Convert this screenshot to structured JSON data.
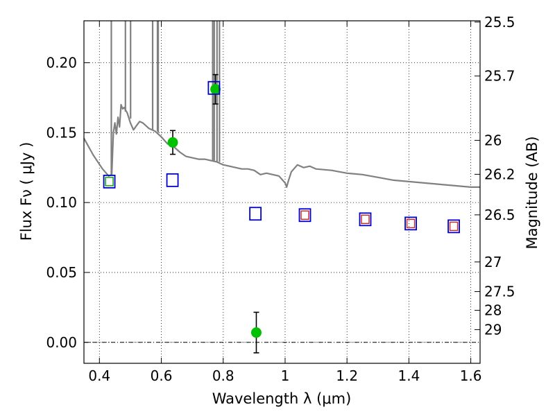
{
  "chart_data": {
    "type": "scatter",
    "xlabel": "Wavelength  λ (μm)",
    "ylabel": "Flux  Fν  ( μJy )",
    "y2label": "Magnitude (AB)",
    "xlim": [
      0.35,
      1.63
    ],
    "ylim": [
      -0.015,
      0.23
    ],
    "grid": true,
    "x_ticks": [
      0.4,
      0.6,
      0.8,
      1.0,
      1.2,
      1.4,
      1.6
    ],
    "x_tick_labels": [
      "0.4",
      "0.6",
      "0.8",
      "1",
      "1.2",
      "1.4",
      "1.6"
    ],
    "y_ticks": [
      0.0,
      0.05,
      0.1,
      0.15,
      0.2
    ],
    "y_tick_labels": [
      "0.00",
      "0.05",
      "0.10",
      "0.15",
      "0.20"
    ],
    "right_ticks": [
      {
        "label": "25.5",
        "flux": 0.2291
      },
      {
        "label": "25.7",
        "flux": 0.1905
      },
      {
        "label": "26",
        "flux": 0.1445
      },
      {
        "label": "26.2",
        "flux": 0.1202
      },
      {
        "label": "26.5",
        "flux": 0.0912
      },
      {
        "label": "27",
        "flux": 0.0575
      },
      {
        "label": "27.5",
        "flux": 0.0363
      },
      {
        "label": "28",
        "flux": 0.0229
      },
      {
        "label": "29",
        "flux": 0.0091
      }
    ],
    "series": [
      {
        "kind": "line",
        "color": "#808080",
        "x": [
          0.35,
          0.38,
          0.41,
          0.43,
          0.44,
          0.445,
          0.45,
          0.455,
          0.46,
          0.465,
          0.47,
          0.475,
          0.48,
          0.49,
          0.5,
          0.51,
          0.52,
          0.53,
          0.54,
          0.55,
          0.56,
          0.58,
          0.6,
          0.62,
          0.64,
          0.66,
          0.68,
          0.7,
          0.72,
          0.74,
          0.76,
          0.78,
          0.8,
          0.82,
          0.84,
          0.86,
          0.88,
          0.9,
          0.92,
          0.94,
          0.96,
          0.98,
          1.0,
          1.005,
          1.01,
          1.02,
          1.04,
          1.06,
          1.08,
          1.1,
          1.15,
          1.2,
          1.25,
          1.3,
          1.35,
          1.4,
          1.45,
          1.5,
          1.55,
          1.6,
          1.63
        ],
        "y": [
          0.146,
          0.134,
          0.124,
          0.119,
          0.12,
          0.15,
          0.157,
          0.149,
          0.161,
          0.154,
          0.17,
          0.167,
          0.168,
          0.164,
          0.157,
          0.152,
          0.155,
          0.158,
          0.157,
          0.155,
          0.153,
          0.151,
          0.147,
          0.142,
          0.14,
          0.136,
          0.133,
          0.132,
          0.131,
          0.131,
          0.13,
          0.129,
          0.127,
          0.126,
          0.125,
          0.124,
          0.124,
          0.123,
          0.12,
          0.121,
          0.12,
          0.119,
          0.114,
          0.111,
          0.115,
          0.122,
          0.127,
          0.125,
          0.126,
          0.124,
          0.123,
          0.121,
          0.12,
          0.118,
          0.116,
          0.115,
          0.114,
          0.113,
          0.112,
          0.111,
          0.111
        ]
      },
      {
        "kind": "spikes",
        "color": "#808080",
        "x": [
          0.4385,
          0.484,
          0.5007,
          0.572,
          0.5876,
          0.59,
          0.766,
          0.771,
          0.78,
          0.788
        ],
        "from": [
          0.12,
          0.165,
          0.16,
          0.152,
          0.151,
          0.15,
          0.13,
          0.13,
          0.129,
          0.129
        ],
        "to": 0.23
      },
      {
        "kind": "points",
        "marker": "circle",
        "color": "#00c000",
        "x": [
          0.637,
          0.775,
          0.907
        ],
        "y": [
          0.143,
          0.181,
          0.007
        ],
        "yerr": [
          0.0085,
          0.0105,
          0.0145
        ]
      },
      {
        "kind": "points",
        "marker": "square-open",
        "color": "#0000cc",
        "x": [
          0.432,
          0.636,
          0.77,
          0.904,
          1.064,
          1.259,
          1.406,
          1.545
        ],
        "y": [
          0.115,
          0.116,
          0.182,
          0.092,
          0.091,
          0.088,
          0.085,
          0.083
        ]
      },
      {
        "kind": "points",
        "marker": "square-open-small",
        "color": "#00a000",
        "x": [
          0.432
        ],
        "y": [
          0.115
        ]
      },
      {
        "kind": "points",
        "marker": "square-open-small",
        "color": "#cc2222",
        "x": [
          1.064,
          1.259,
          1.406,
          1.545
        ],
        "y": [
          0.091,
          0.088,
          0.085,
          0.083
        ]
      }
    ]
  }
}
